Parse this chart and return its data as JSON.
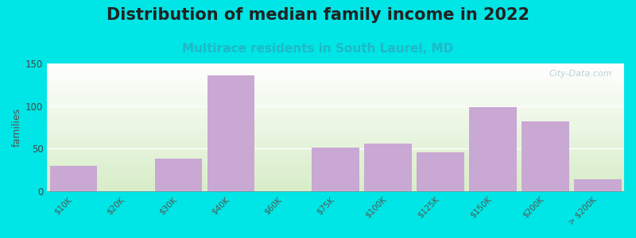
{
  "title": "Distribution of median family income in 2022",
  "subtitle": "Multirace residents in South Laurel, MD",
  "ylabel": "families",
  "categories": [
    "$10K",
    "$20K",
    "$30K",
    "$40K",
    "$60K",
    "$75K",
    "$100K",
    "$125K",
    "$150K",
    "$200K",
    "> $200K"
  ],
  "values": [
    30,
    0,
    38,
    136,
    0,
    51,
    56,
    46,
    99,
    82,
    14
  ],
  "bar_color": "#c9a8d4",
  "background_outer": "#00e5e5",
  "background_plot_top": "#f5faf0",
  "background_plot_bottom": "#eaf5e0",
  "gradient_top_color": "#ffffff",
  "gradient_bottom_color": "#d8edc8",
  "ylim": [
    0,
    150
  ],
  "yticks": [
    0,
    50,
    100,
    150
  ],
  "title_fontsize": 15,
  "subtitle_fontsize": 11,
  "subtitle_color": "#20b8c8",
  "watermark": "City-Data.com",
  "watermark_color": "#b0c8d0"
}
